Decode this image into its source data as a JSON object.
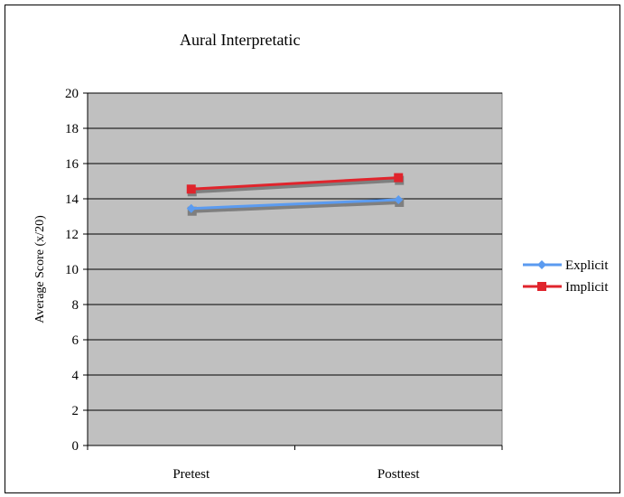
{
  "chart_data": {
    "type": "line",
    "title": "Aural Interpretatic",
    "xlabel": "",
    "ylabel": "Average Score (x/20)",
    "categories": [
      "Pretest",
      "Posttest"
    ],
    "ylim": [
      0,
      20
    ],
    "yticks": [
      0,
      2,
      4,
      6,
      8,
      10,
      12,
      14,
      16,
      18,
      20
    ],
    "grid": true,
    "legend_position": "right",
    "plot_background": "#c0c0c0",
    "series": [
      {
        "name": "Explicit",
        "values": [
          13.45,
          13.95
        ],
        "color": "#5b9bf0",
        "marker": "diamond"
      },
      {
        "name": "Implicit",
        "values": [
          14.55,
          15.2
        ],
        "color": "#e0242c",
        "marker": "square"
      }
    ]
  }
}
